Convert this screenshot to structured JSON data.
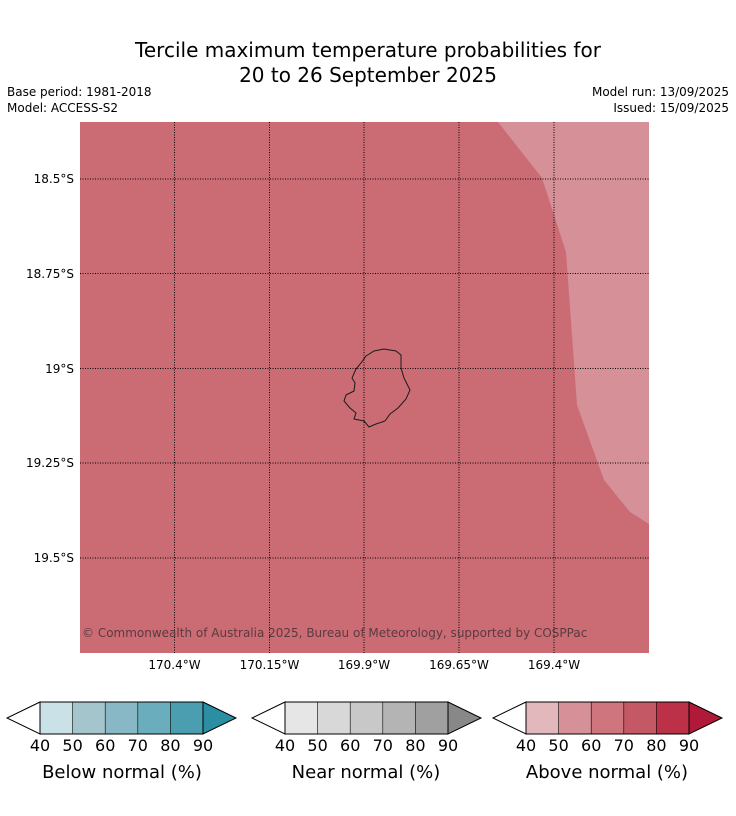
{
  "title": {
    "line1": "Tercile maximum temperature probabilities for",
    "line2": "20 to 26 September 2025"
  },
  "meta": {
    "base_period": "Base period: 1981-2018",
    "model": "Model: ACCESS-S2",
    "model_run": "Model run: 13/09/2025",
    "issued": "Issued: 15/09/2025"
  },
  "map": {
    "lat_labels": [
      "18.5°S",
      "18.75°S",
      "19°S",
      "19.25°S",
      "19.5°S"
    ],
    "lon_labels": [
      "170.4°W",
      "170.15°W",
      "169.9°W",
      "169.65°W",
      "169.4°W"
    ],
    "copyright": "© Commonwealth of Australia 2025, Bureau of Meteorology, supported by COSPPac",
    "colors": {
      "above_70_80": "#cb6c75",
      "above_50_60": "#d69097",
      "coastline": "#1a1a1a",
      "gridline": "#000000"
    }
  },
  "colorbars": [
    {
      "title": "Below normal (%)",
      "ticks": [
        "40",
        "50",
        "60",
        "70",
        "80",
        "90"
      ],
      "colors": [
        "#ffffff",
        "#c9e1e7",
        "#a5c5cc",
        "#88b8c5",
        "#6aaebd",
        "#4a9eb0",
        "#2b8ea3"
      ]
    },
    {
      "title": "Near normal (%)",
      "ticks": [
        "40",
        "50",
        "60",
        "70",
        "80",
        "90"
      ],
      "colors": [
        "#ffffff",
        "#e6e6e6",
        "#d8d8d8",
        "#c8c8c8",
        "#b4b4b4",
        "#a0a0a0",
        "#888888"
      ]
    },
    {
      "title": "Above normal (%)",
      "ticks": [
        "40",
        "50",
        "60",
        "70",
        "80",
        "90"
      ],
      "colors": [
        "#ffffff",
        "#e3b8bc",
        "#d69097",
        "#cf757d",
        "#c45865",
        "#bc3048",
        "#b01a38"
      ]
    }
  ]
}
